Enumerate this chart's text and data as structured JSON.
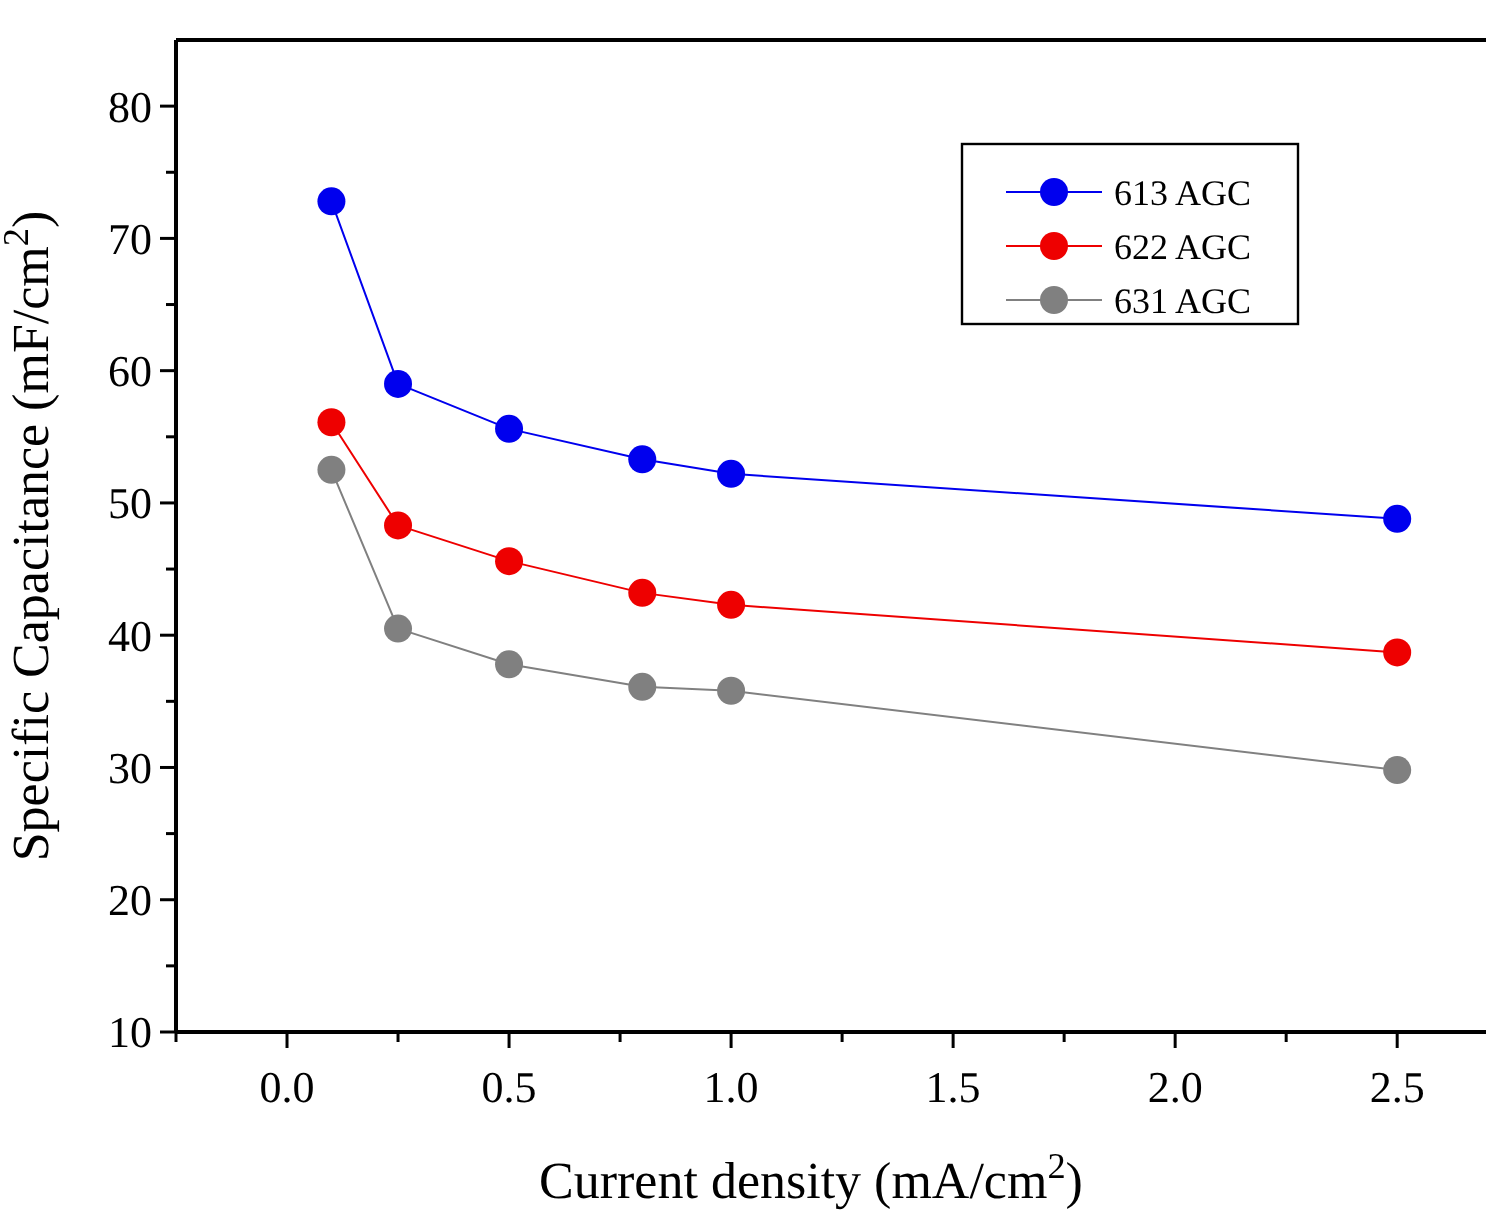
{
  "chart_data": {
    "type": "line",
    "xlabel": "Current density (mA/cm$^{2}$)",
    "ylabel": "Specific Capacitance (mF/cm$^{2}$)",
    "x": [
      0.1,
      0.25,
      0.5,
      0.8,
      1.0,
      2.5
    ],
    "series": [
      {
        "name": "613 AGC",
        "color": "#0000ee",
        "values": [
          72.8,
          59.0,
          55.6,
          53.3,
          52.2,
          48.8
        ]
      },
      {
        "name": "622 AGC",
        "color": "#ee0000",
        "values": [
          56.1,
          48.3,
          45.6,
          43.2,
          42.3,
          38.7
        ]
      },
      {
        "name": "631 AGC",
        "color": "#808080",
        "values": [
          52.5,
          40.5,
          37.8,
          36.1,
          35.8,
          29.8
        ]
      }
    ],
    "xlim": [
      -0.25,
      2.7
    ],
    "ylim": [
      10,
      85
    ],
    "xticks": [
      {
        "value": -0.25,
        "label": null
      },
      {
        "value": 0,
        "label": "0.0"
      },
      {
        "value": 0.25,
        "label": null
      },
      {
        "value": 0.5,
        "label": "0.5"
      },
      {
        "value": 0.75,
        "label": null
      },
      {
        "value": 1,
        "label": "1.0"
      },
      {
        "value": 1.25,
        "label": null
      },
      {
        "value": 1.5,
        "label": "1.5"
      },
      {
        "value": 1.75,
        "label": null
      },
      {
        "value": 2,
        "label": "2.0"
      },
      {
        "value": 2.25,
        "label": null
      },
      {
        "value": 2.5,
        "label": "2.5"
      }
    ],
    "yticks": [
      10,
      {
        "value": 15,
        "label": null
      },
      20,
      {
        "value": 25,
        "label": null
      },
      30,
      {
        "value": 35,
        "label": null
      },
      40,
      {
        "value": 45,
        "label": null
      },
      50,
      {
        "value": 55,
        "label": null
      },
      60,
      {
        "value": 65,
        "label": null
      },
      70,
      {
        "value": 75,
        "label": null
      },
      80
    ],
    "marker": "circle",
    "line_style": "solid",
    "legend": "top right",
    "grid": false
  }
}
